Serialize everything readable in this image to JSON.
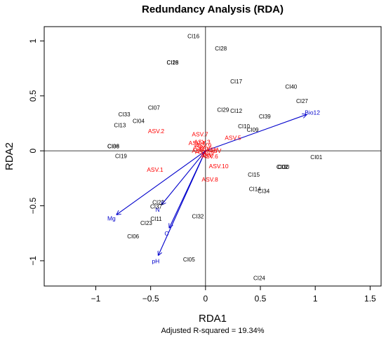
{
  "chart_data": {
    "type": "scatter",
    "title": "Redundancy Analysis (RDA)",
    "xlabel": "RDA1",
    "ylabel": "RDA2",
    "subtitle": "Adjusted R-squared = 19.34%",
    "xlim": [
      -1.47,
      1.6
    ],
    "ylim": [
      -1.23,
      1.13
    ],
    "x_ticks": [
      -1,
      -0.5,
      0,
      0.5,
      1,
      1.5
    ],
    "x_tick_labels": [
      "−1",
      "−0.5",
      "0",
      "0.5",
      "1",
      "1.5"
    ],
    "y_ticks": [
      -1,
      -0.5,
      0,
      0.5,
      1
    ],
    "y_tick_labels": [
      "−1",
      "−0.5",
      "0",
      "0.5",
      "1"
    ],
    "grid": false,
    "colors": {
      "sites": "#000000",
      "species": "#ff0000",
      "env": "#0000cc",
      "frame": "#000000"
    },
    "sites": [
      {
        "label": "CI16",
        "x": -0.11,
        "y": 1.04
      },
      {
        "label": "CI28",
        "x": 0.14,
        "y": 0.93
      },
      {
        "label": "CI26",
        "x": -0.3,
        "y": 0.8
      },
      {
        "label": "CI18",
        "x": -0.3,
        "y": 0.8
      },
      {
        "label": "CI17",
        "x": 0.28,
        "y": 0.63
      },
      {
        "label": "CI40",
        "x": 0.78,
        "y": 0.58
      },
      {
        "label": "CI27",
        "x": 0.88,
        "y": 0.45
      },
      {
        "label": "CI07",
        "x": -0.47,
        "y": 0.39
      },
      {
        "label": "CI29",
        "x": 0.16,
        "y": 0.37
      },
      {
        "label": "CI12",
        "x": 0.28,
        "y": 0.36
      },
      {
        "label": "CI39",
        "x": 0.54,
        "y": 0.31
      },
      {
        "label": "CI33",
        "x": -0.74,
        "y": 0.33
      },
      {
        "label": "CI04",
        "x": -0.61,
        "y": 0.27
      },
      {
        "label": "CI13",
        "x": -0.78,
        "y": 0.23
      },
      {
        "label": "CI10",
        "x": 0.35,
        "y": 0.22
      },
      {
        "label": "CI09",
        "x": 0.43,
        "y": 0.19
      },
      {
        "label": "CI08",
        "x": -0.84,
        "y": 0.04
      },
      {
        "label": "CI36",
        "x": -0.84,
        "y": 0.04
      },
      {
        "label": "CI19",
        "x": -0.77,
        "y": -0.05
      },
      {
        "label": "CI01",
        "x": 1.01,
        "y": -0.06
      },
      {
        "label": "CI02",
        "x": 0.7,
        "y": -0.15
      },
      {
        "label": "CI30",
        "x": 0.71,
        "y": -0.15
      },
      {
        "label": "CI15",
        "x": 0.44,
        "y": -0.22
      },
      {
        "label": "CI14",
        "x": 0.45,
        "y": -0.35
      },
      {
        "label": "CI34",
        "x": 0.53,
        "y": -0.37
      },
      {
        "label": "CI22",
        "x": -0.43,
        "y": -0.47
      },
      {
        "label": "CI37",
        "x": -0.45,
        "y": -0.51
      },
      {
        "label": "CI32",
        "x": -0.07,
        "y": -0.6
      },
      {
        "label": "CI11",
        "x": -0.45,
        "y": -0.62
      },
      {
        "label": "CI23",
        "x": -0.54,
        "y": -0.66
      },
      {
        "label": "CI06",
        "x": -0.66,
        "y": -0.78
      },
      {
        "label": "CI05",
        "x": -0.15,
        "y": -0.99
      },
      {
        "label": "CI24",
        "x": 0.49,
        "y": -1.16
      }
    ],
    "species": [
      {
        "label": "ASV.2",
        "x": -0.45,
        "y": 0.18
      },
      {
        "label": "ASV.7",
        "x": -0.05,
        "y": 0.15
      },
      {
        "label": "ASV.5",
        "x": 0.25,
        "y": 0.12
      },
      {
        "label": "ASV.3",
        "x": -0.03,
        "y": 0.08
      },
      {
        "label": "ASV.4",
        "x": -0.08,
        "y": 0.07
      },
      {
        "label": "ASV.9",
        "x": -0.02,
        "y": 0.05
      },
      {
        "label": "ASV.6",
        "x": 0.04,
        "y": -0.05
      },
      {
        "label": "ASV.10",
        "x": 0.12,
        "y": -0.14
      },
      {
        "label": "ASV.1",
        "x": -0.46,
        "y": -0.17
      },
      {
        "label": "ASV.8",
        "x": 0.04,
        "y": -0.26
      }
    ],
    "species_cluster": [
      {
        "label": "ASV",
        "x": -0.06,
        "y": 0.03
      },
      {
        "label": "ASV",
        "x": -0.01,
        "y": 0.02
      },
      {
        "label": "ASV",
        "x": 0.06,
        "y": 0.01
      },
      {
        "label": "ASV",
        "x": -0.04,
        "y": -0.01
      },
      {
        "label": "ASV",
        "x": 0.03,
        "y": -0.02
      },
      {
        "label": "ASV",
        "x": 0.09,
        "y": 0.0
      },
      {
        "label": "ASV",
        "x": -0.07,
        "y": 0.0
      },
      {
        "label": "ASV",
        "x": 0.01,
        "y": -0.04
      }
    ],
    "environment": [
      {
        "label": "Bio12",
        "x": 0.92,
        "y": 0.33
      },
      {
        "label": "Mg",
        "x": -0.81,
        "y": -0.58
      },
      {
        "label": "N",
        "x": -0.4,
        "y": -0.49
      },
      {
        "label": "C",
        "x": -0.33,
        "y": -0.7
      },
      {
        "label": "pH",
        "x": -0.43,
        "y": -0.95
      }
    ]
  }
}
